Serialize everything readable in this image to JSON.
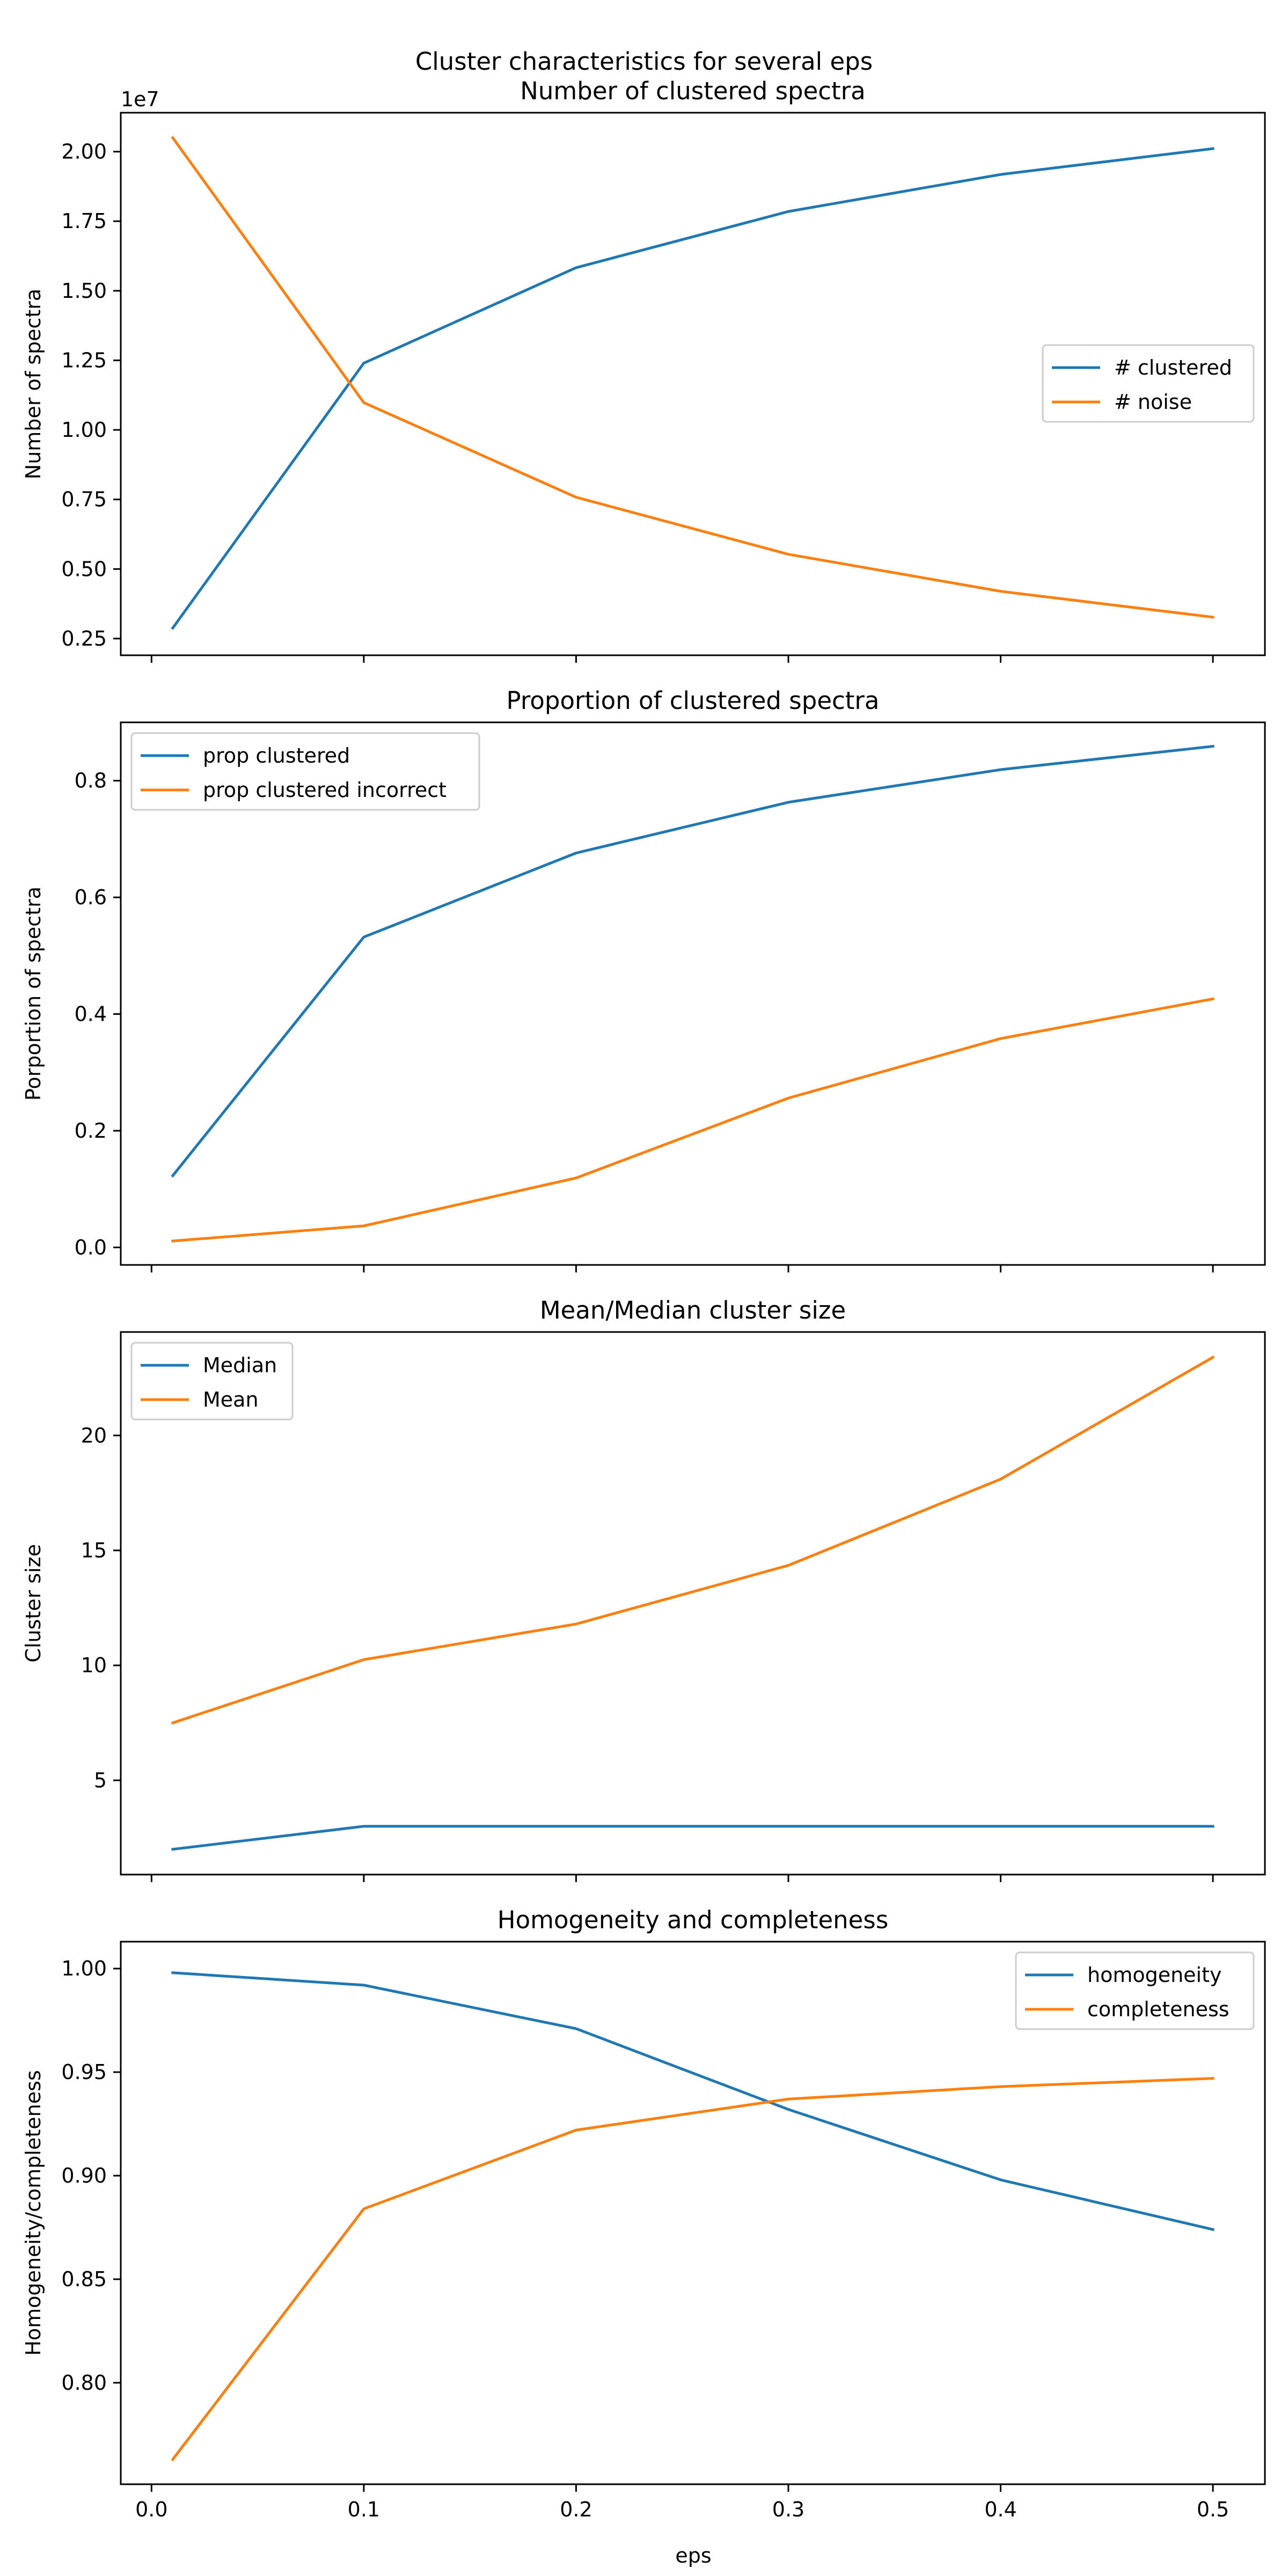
{
  "figure": {
    "suptitle": "Cluster characteristics for several eps",
    "xlabel": "eps",
    "x_ticks": [
      "0.0",
      "0.1",
      "0.2",
      "0.3",
      "0.4",
      "0.5"
    ]
  },
  "colors": {
    "series1": "#1f77b4",
    "series2": "#ff7f0e"
  },
  "chart_data": [
    {
      "type": "line",
      "title": "Number of clustered spectra",
      "ylabel": "Number of spectra",
      "offset_text": "1e7",
      "x": [
        0.01,
        0.1,
        0.2,
        0.3,
        0.4,
        0.5
      ],
      "xlim": [
        -0.0145,
        0.5245
      ],
      "ylim": [
        0.19,
        2.14
      ],
      "y_ticks": [
        "0.25",
        "0.50",
        "0.75",
        "1.00",
        "1.25",
        "1.50",
        "1.75",
        "2.00"
      ],
      "y_tick_values": [
        0.25,
        0.5,
        0.75,
        1.0,
        1.25,
        1.5,
        1.75,
        2.0
      ],
      "legend_loc": "center-right",
      "series": [
        {
          "name": "# clustered",
          "values": [
            0.288,
            1.24,
            1.583,
            1.785,
            1.918,
            2.011
          ]
        },
        {
          "name": "# noise",
          "values": [
            2.05,
            1.098,
            0.758,
            0.553,
            0.42,
            0.327
          ]
        }
      ]
    },
    {
      "type": "line",
      "title": "Proportion of clustered spectra",
      "ylabel": "Porportion of spectra",
      "x": [
        0.01,
        0.1,
        0.2,
        0.3,
        0.4,
        0.5
      ],
      "xlim": [
        -0.0145,
        0.5245
      ],
      "ylim": [
        -0.03,
        0.9
      ],
      "y_ticks": [
        "0.0",
        "0.2",
        "0.4",
        "0.6",
        "0.8"
      ],
      "y_tick_values": [
        0.0,
        0.2,
        0.4,
        0.6,
        0.8
      ],
      "legend_loc": "upper-left",
      "series": [
        {
          "name": "prop clustered",
          "values": [
            0.123,
            0.532,
            0.676,
            0.763,
            0.819,
            0.859
          ]
        },
        {
          "name": "prop clustered incorrect",
          "values": [
            0.011,
            0.037,
            0.119,
            0.256,
            0.358,
            0.426
          ]
        }
      ]
    },
    {
      "type": "line",
      "title": "Mean/Median cluster size",
      "ylabel": "Cluster size",
      "x": [
        0.01,
        0.1,
        0.2,
        0.3,
        0.4,
        0.5
      ],
      "xlim": [
        -0.0145,
        0.5245
      ],
      "ylim": [
        0.9,
        24.5
      ],
      "y_ticks": [
        "5",
        "10",
        "15",
        "20"
      ],
      "y_tick_values": [
        5,
        10,
        15,
        20
      ],
      "legend_loc": "upper-left",
      "series": [
        {
          "name": "Median",
          "values": [
            2.0,
            3.0,
            3.0,
            3.0,
            3.0,
            3.0
          ]
        },
        {
          "name": "Mean",
          "values": [
            7.5,
            10.25,
            11.8,
            14.35,
            18.1,
            23.4
          ]
        }
      ]
    },
    {
      "type": "line",
      "title": "Homogeneity and completeness",
      "ylabel": "Homogeneity/completeness",
      "x": [
        0.01,
        0.1,
        0.2,
        0.3,
        0.4,
        0.5
      ],
      "xlim": [
        -0.0145,
        0.5245
      ],
      "ylim": [
        0.751,
        1.013
      ],
      "y_ticks": [
        "0.80",
        "0.85",
        "0.90",
        "0.95",
        "1.00"
      ],
      "y_tick_values": [
        0.8,
        0.85,
        0.9,
        0.95,
        1.0
      ],
      "legend_loc": "upper-right",
      "series": [
        {
          "name": "homogeneity",
          "values": [
            0.998,
            0.992,
            0.971,
            0.932,
            0.898,
            0.874
          ]
        },
        {
          "name": "completeness",
          "values": [
            0.763,
            0.884,
            0.922,
            0.937,
            0.943,
            0.947
          ]
        }
      ]
    }
  ]
}
